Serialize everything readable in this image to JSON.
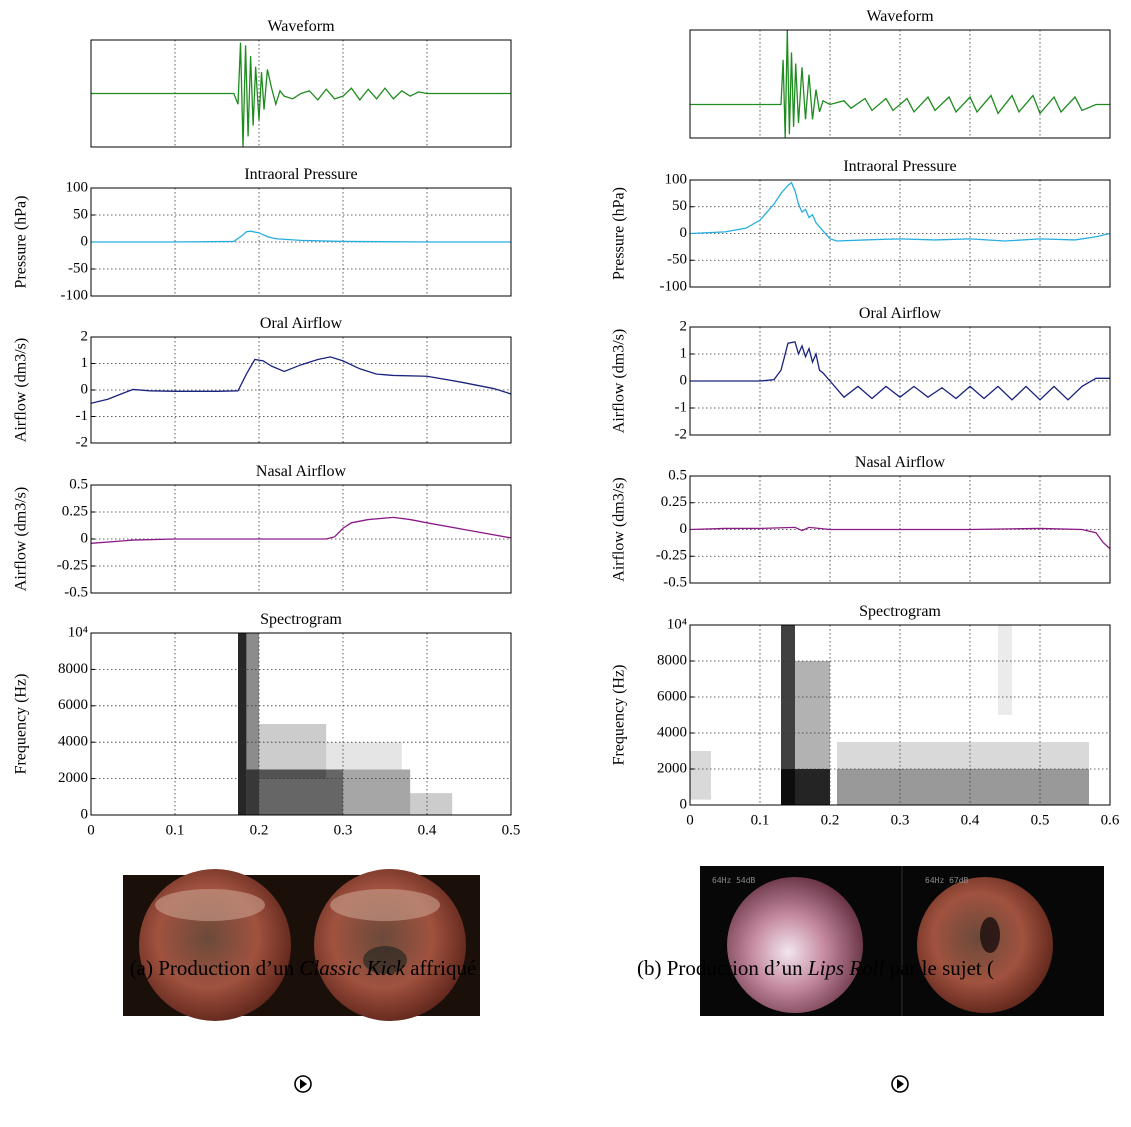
{
  "chart_data": [
    {
      "type": "line",
      "title": "Waveform",
      "color": "#1e8c1e",
      "grid": "x",
      "x": [
        0,
        0.1,
        0.17,
        0.175,
        0.178,
        0.181,
        0.184,
        0.187,
        0.19,
        0.193,
        0.196,
        0.2,
        0.203,
        0.206,
        0.21,
        0.215,
        0.22,
        0.225,
        0.23,
        0.24,
        0.25,
        0.26,
        0.27,
        0.28,
        0.29,
        0.3,
        0.31,
        0.32,
        0.33,
        0.34,
        0.35,
        0.36,
        0.37,
        0.38,
        0.39,
        0.4,
        0.41,
        0.5
      ],
      "values": [
        0,
        0,
        0,
        -0.2,
        0.95,
        -1,
        0.9,
        -0.8,
        0.7,
        -0.6,
        0.5,
        -0.5,
        0.4,
        -0.3,
        0.45,
        0.1,
        -0.2,
        0.05,
        -0.05,
        -0.1,
        0,
        0.05,
        -0.12,
        0.08,
        -0.1,
        -0.05,
        0.1,
        -0.12,
        0.08,
        -0.1,
        0.1,
        -0.1,
        0.05,
        -0.05,
        0.03,
        0,
        0,
        0
      ],
      "xlim": [
        0,
        0.5
      ],
      "xticks": [
        0,
        0.1,
        0.2,
        0.3,
        0.4,
        0.5
      ],
      "ylim": [
        -1,
        1
      ]
    },
    {
      "type": "line",
      "title": "Intraoral Pressure",
      "ylabel": "Pressure (hPa)",
      "color": "#27aee0",
      "grid": "both",
      "x": [
        0,
        0.1,
        0.17,
        0.18,
        0.185,
        0.19,
        0.2,
        0.21,
        0.22,
        0.25,
        0.3,
        0.4,
        0.5
      ],
      "values": [
        0,
        0,
        1,
        12,
        19,
        20,
        17,
        10,
        6,
        3,
        1,
        0,
        0
      ],
      "xlim": [
        0,
        0.5
      ],
      "xticks": [
        0,
        0.1,
        0.2,
        0.3,
        0.4,
        0.5
      ],
      "ylim": [
        -100,
        100
      ],
      "yticks": [
        -100,
        -50,
        0,
        50,
        100
      ]
    },
    {
      "type": "line",
      "title": "Oral Airflow",
      "ylabel": "Airflow (dm3/s)",
      "color": "#1a237e",
      "grid": "both",
      "x": [
        0,
        0.02,
        0.04,
        0.05,
        0.07,
        0.1,
        0.15,
        0.175,
        0.185,
        0.195,
        0.205,
        0.215,
        0.23,
        0.25,
        0.27,
        0.285,
        0.3,
        0.32,
        0.34,
        0.36,
        0.4,
        0.44,
        0.48,
        0.5
      ],
      "values": [
        -0.5,
        -0.35,
        -0.1,
        0.02,
        -0.03,
        -0.05,
        -0.05,
        -0.03,
        0.6,
        1.15,
        1.1,
        0.9,
        0.7,
        0.95,
        1.15,
        1.25,
        1.1,
        0.8,
        0.6,
        0.55,
        0.52,
        0.3,
        0.05,
        -0.15
      ],
      "xlim": [
        0,
        0.5
      ],
      "xticks": [
        0,
        0.1,
        0.2,
        0.3,
        0.4,
        0.5
      ],
      "ylim": [
        -2,
        2
      ],
      "yticks": [
        -2,
        -1,
        0,
        1,
        2
      ]
    },
    {
      "type": "line",
      "title": "Nasal Airflow",
      "ylabel": "Airflow (dm3/s)",
      "color": "#8b1a89",
      "grid": "both",
      "x": [
        0,
        0.05,
        0.1,
        0.2,
        0.28,
        0.29,
        0.3,
        0.31,
        0.33,
        0.36,
        0.38,
        0.4,
        0.45,
        0.5
      ],
      "values": [
        -0.04,
        -0.01,
        0,
        0,
        0,
        0.02,
        0.1,
        0.15,
        0.18,
        0.2,
        0.18,
        0.15,
        0.08,
        0.01
      ],
      "xlim": [
        0,
        0.5
      ],
      "xticks": [
        0,
        0.1,
        0.2,
        0.3,
        0.4,
        0.5
      ],
      "ylim": [
        -0.5,
        0.5
      ],
      "yticks": [
        -0.5,
        -0.25,
        0,
        0.25,
        0.5
      ]
    },
    {
      "type": "spectrogram",
      "title": "Spectrogram",
      "ylabel": "Frequency (Hz)",
      "grid": "both",
      "xtick_labels": true,
      "cells": [
        {
          "t": [
            0.175,
            0.185
          ],
          "f": [
            0,
            10000
          ],
          "level": 0.85
        },
        {
          "t": [
            0.185,
            0.2
          ],
          "f": [
            0,
            10000
          ],
          "level": 0.45
        },
        {
          "t": [
            0.2,
            0.28
          ],
          "f": [
            2000,
            5000
          ],
          "level": 0.2
        },
        {
          "t": [
            0.185,
            0.3
          ],
          "f": [
            0,
            2500
          ],
          "level": 0.6
        },
        {
          "t": [
            0.3,
            0.38
          ],
          "f": [
            0,
            2500
          ],
          "level": 0.35
        },
        {
          "t": [
            0.38,
            0.43
          ],
          "f": [
            0,
            1200
          ],
          "level": 0.2
        },
        {
          "t": [
            0.28,
            0.37
          ],
          "f": [
            2500,
            4000
          ],
          "level": 0.1
        }
      ],
      "xlim": [
        0,
        0.5
      ],
      "xticks": [
        0,
        0.1,
        0.2,
        0.3,
        0.4,
        0.5
      ],
      "ylim": [
        0,
        10000
      ],
      "yticks": [
        0,
        2000,
        4000,
        6000,
        8000,
        {
          "value": 10000,
          "label": "10⁴"
        }
      ]
    },
    {
      "type": "line",
      "title": "Waveform",
      "color": "#1e8c1e",
      "grid": "x",
      "x": [
        0,
        0.12,
        0.13,
        0.133,
        0.136,
        0.139,
        0.142,
        0.145,
        0.148,
        0.151,
        0.155,
        0.16,
        0.165,
        0.17,
        0.175,
        0.18,
        0.185,
        0.19,
        0.2,
        0.22,
        0.23,
        0.25,
        0.26,
        0.28,
        0.29,
        0.31,
        0.32,
        0.34,
        0.35,
        0.37,
        0.38,
        0.4,
        0.41,
        0.43,
        0.44,
        0.46,
        0.47,
        0.49,
        0.5,
        0.52,
        0.53,
        0.55,
        0.56,
        0.58,
        0.6
      ],
      "values": [
        0,
        0,
        0,
        0.6,
        -0.45,
        1,
        -0.4,
        0.7,
        -0.3,
        0.55,
        -0.25,
        0.5,
        -0.2,
        0.4,
        -0.2,
        0.2,
        -0.1,
        0.05,
        0,
        0.05,
        -0.05,
        0.08,
        -0.08,
        0.08,
        -0.08,
        0.08,
        -0.1,
        0.1,
        -0.08,
        0.1,
        -0.1,
        0.1,
        -0.1,
        0.12,
        -0.12,
        0.12,
        -0.1,
        0.12,
        -0.12,
        0.1,
        -0.1,
        0.1,
        -0.08,
        0,
        0
      ],
      "xlim": [
        0,
        0.6
      ],
      "xticks": [
        0,
        0.1,
        0.2,
        0.3,
        0.4,
        0.5,
        0.6
      ],
      "ylim": [
        -0.45,
        1
      ]
    },
    {
      "type": "line",
      "title": "Intraoral Pressure",
      "ylabel": "Pressure (hPa)",
      "color": "#27aee0",
      "grid": "both",
      "x": [
        0,
        0.05,
        0.08,
        0.1,
        0.12,
        0.13,
        0.14,
        0.145,
        0.15,
        0.155,
        0.16,
        0.165,
        0.17,
        0.175,
        0.18,
        0.19,
        0.2,
        0.21,
        0.25,
        0.3,
        0.35,
        0.4,
        0.45,
        0.5,
        0.55,
        0.58,
        0.6
      ],
      "values": [
        0,
        3,
        10,
        25,
        55,
        75,
        90,
        95,
        80,
        55,
        40,
        45,
        30,
        35,
        20,
        5,
        -10,
        -14,
        -12,
        -10,
        -12,
        -10,
        -14,
        -10,
        -12,
        -6,
        0
      ],
      "xlim": [
        0,
        0.6
      ],
      "xticks": [
        0,
        0.1,
        0.2,
        0.3,
        0.4,
        0.5,
        0.6
      ],
      "ylim": [
        -100,
        100
      ],
      "yticks": [
        -100,
        -50,
        0,
        50,
        100
      ]
    },
    {
      "type": "line",
      "title": "Oral Airflow",
      "ylabel": "Airflow (dm3/s)",
      "color": "#1a237e",
      "grid": "both",
      "x": [
        0,
        0.1,
        0.12,
        0.13,
        0.14,
        0.15,
        0.155,
        0.16,
        0.165,
        0.17,
        0.175,
        0.18,
        0.185,
        0.19,
        0.2,
        0.22,
        0.24,
        0.26,
        0.28,
        0.3,
        0.32,
        0.34,
        0.36,
        0.38,
        0.4,
        0.42,
        0.44,
        0.46,
        0.48,
        0.5,
        0.52,
        0.54,
        0.56,
        0.58,
        0.6
      ],
      "values": [
        0,
        0,
        0.05,
        0.4,
        1.4,
        1.45,
        1.0,
        1.3,
        0.9,
        1.2,
        0.7,
        1.0,
        0.4,
        0.3,
        0,
        -0.6,
        -0.2,
        -0.65,
        -0.2,
        -0.6,
        -0.2,
        -0.6,
        -0.25,
        -0.65,
        -0.2,
        -0.65,
        -0.2,
        -0.7,
        -0.2,
        -0.7,
        -0.2,
        -0.7,
        -0.2,
        0.1,
        0.1
      ],
      "xlim": [
        0,
        0.6
      ],
      "xticks": [
        0,
        0.1,
        0.2,
        0.3,
        0.4,
        0.5,
        0.6
      ],
      "ylim": [
        -2,
        2
      ],
      "yticks": [
        -2,
        -1,
        0,
        1,
        2
      ]
    },
    {
      "type": "line",
      "title": "Nasal Airflow",
      "ylabel": "Airflow (dm3/s)",
      "color": "#8b1a89",
      "grid": "both",
      "x": [
        0,
        0.05,
        0.1,
        0.15,
        0.16,
        0.17,
        0.2,
        0.3,
        0.4,
        0.5,
        0.56,
        0.58,
        0.59,
        0.6
      ],
      "values": [
        0,
        0.01,
        0.01,
        0.02,
        -0.01,
        0.02,
        0,
        0,
        0,
        0.01,
        0,
        -0.03,
        -0.12,
        -0.18
      ],
      "xlim": [
        0,
        0.6
      ],
      "xticks": [
        0,
        0.1,
        0.2,
        0.3,
        0.4,
        0.5,
        0.6
      ],
      "ylim": [
        -0.5,
        0.5
      ],
      "yticks": [
        -0.5,
        -0.25,
        0,
        0.25,
        0.5
      ]
    },
    {
      "type": "spectrogram",
      "title": "Spectrogram",
      "ylabel": "Frequency (Hz)",
      "grid": "both",
      "xtick_labels": true,
      "cells": [
        {
          "t": [
            0.13,
            0.15
          ],
          "f": [
            0,
            10000
          ],
          "level": 0.75
        },
        {
          "t": [
            0.15,
            0.2
          ],
          "f": [
            0,
            8000
          ],
          "level": 0.3
        },
        {
          "t": [
            0.13,
            0.2
          ],
          "f": [
            0,
            2000
          ],
          "level": 0.8
        },
        {
          "t": [
            0.21,
            0.57
          ],
          "f": [
            0,
            2000
          ],
          "level": 0.4
        },
        {
          "t": [
            0.21,
            0.57
          ],
          "f": [
            2000,
            3500
          ],
          "level": 0.15
        },
        {
          "t": [
            0,
            0.03
          ],
          "f": [
            300,
            3000
          ],
          "level": 0.15
        },
        {
          "t": [
            0.44,
            0.46
          ],
          "f": [
            5000,
            10000
          ],
          "level": 0.08
        }
      ],
      "xlim": [
        0,
        0.6
      ],
      "xticks": [
        0,
        0.1,
        0.2,
        0.3,
        0.4,
        0.5,
        0.6
      ],
      "ylim": [
        0,
        10000
      ],
      "yticks": [
        0,
        2000,
        4000,
        6000,
        8000,
        {
          "value": 10000,
          "label": "10⁴"
        }
      ]
    }
  ],
  "endoscopy": [
    {
      "overlays": []
    },
    {
      "overlays": [
        "64Hz 54dB",
        "64Hz 67dB"
      ]
    }
  ],
  "captions": [
    {
      "label": "(a) Production d’un ",
      "title": "Classic Kick",
      "rest": " affriqué"
    },
    {
      "label": "(b) Production d’un ",
      "title": "Lips Roll",
      "rest": " par le sujet ("
    }
  ]
}
